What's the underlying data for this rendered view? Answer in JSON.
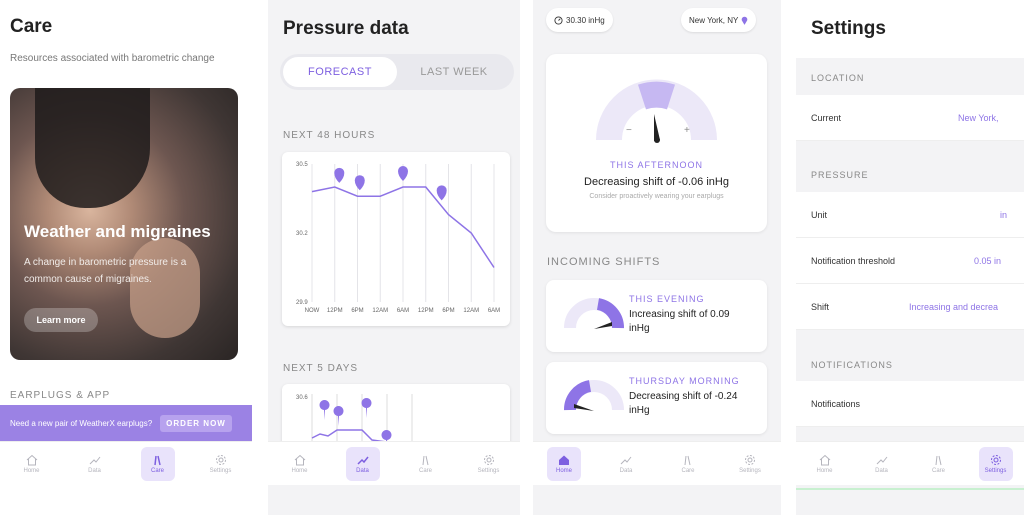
{
  "nav": {
    "home": "Home",
    "data": "Data",
    "care": "Care",
    "settings": "Settings"
  },
  "care": {
    "title": "Care",
    "subtitle": "Resources associated with barometric change",
    "card_title": "Weather and migraines",
    "card_text": "A change in barometric pressure is a common cause of migraines.",
    "learn_more": "Learn more",
    "section": "EARPLUGS & APP",
    "banner_text": "Need a new pair of WeatherX earplugs?",
    "order_now": "ORDER NOW"
  },
  "pressure": {
    "title": "Pressure data",
    "tab_forecast": "FORECAST",
    "tab_last_week": "LAST WEEK",
    "section_48": "NEXT 48 HOURS",
    "section_5": "NEXT 5 DAYS",
    "chart2_y_top": "30.6"
  },
  "chart_data": {
    "type": "line",
    "categories": [
      "NOW",
      "12PM",
      "6PM",
      "12AM",
      "6AM",
      "12PM",
      "6PM",
      "12AM",
      "6AM"
    ],
    "yticks": [
      "30.5",
      "30.2",
      "29.9"
    ],
    "ylim": [
      29.9,
      30.5
    ],
    "values": [
      30.38,
      30.4,
      30.36,
      30.36,
      30.4,
      30.4,
      30.28,
      30.2,
      30.05
    ],
    "markers": [
      1.2,
      2.1,
      4.0,
      5.7
    ],
    "color": "#8e74e6"
  },
  "home": {
    "pressure_reading": "30.30 inHg",
    "location": "New York, NY",
    "gauge_minus": "−",
    "gauge_plus": "+",
    "afternoon_caption": "THIS AFTERNOON",
    "afternoon_text": "Decreasing shift of -0.06 inHg",
    "afternoon_hint": "Consider proactively wearing your earplugs",
    "section": "INCOMING SHIFTS",
    "shifts": [
      {
        "caption": "THIS EVENING",
        "line1": "Increasing shift of 0.09",
        "line2": "inHg"
      },
      {
        "caption": "THURSDAY MORNING",
        "line1": "Decreasing shift of -0.24",
        "line2": "inHg"
      }
    ]
  },
  "settings": {
    "title": "Settings",
    "location_section": "LOCATION",
    "current_label": "Current",
    "current_value": "New York,",
    "pressure_section": "PRESSURE",
    "unit_label": "Unit",
    "unit_value": "in",
    "threshold_label": "Notification threshold",
    "threshold_value": "0.05 in",
    "shift_label": "Shift",
    "shift_value": "Increasing and decrea",
    "notifications_section": "NOTIFICATIONS",
    "notifications_label": "Notifications"
  }
}
